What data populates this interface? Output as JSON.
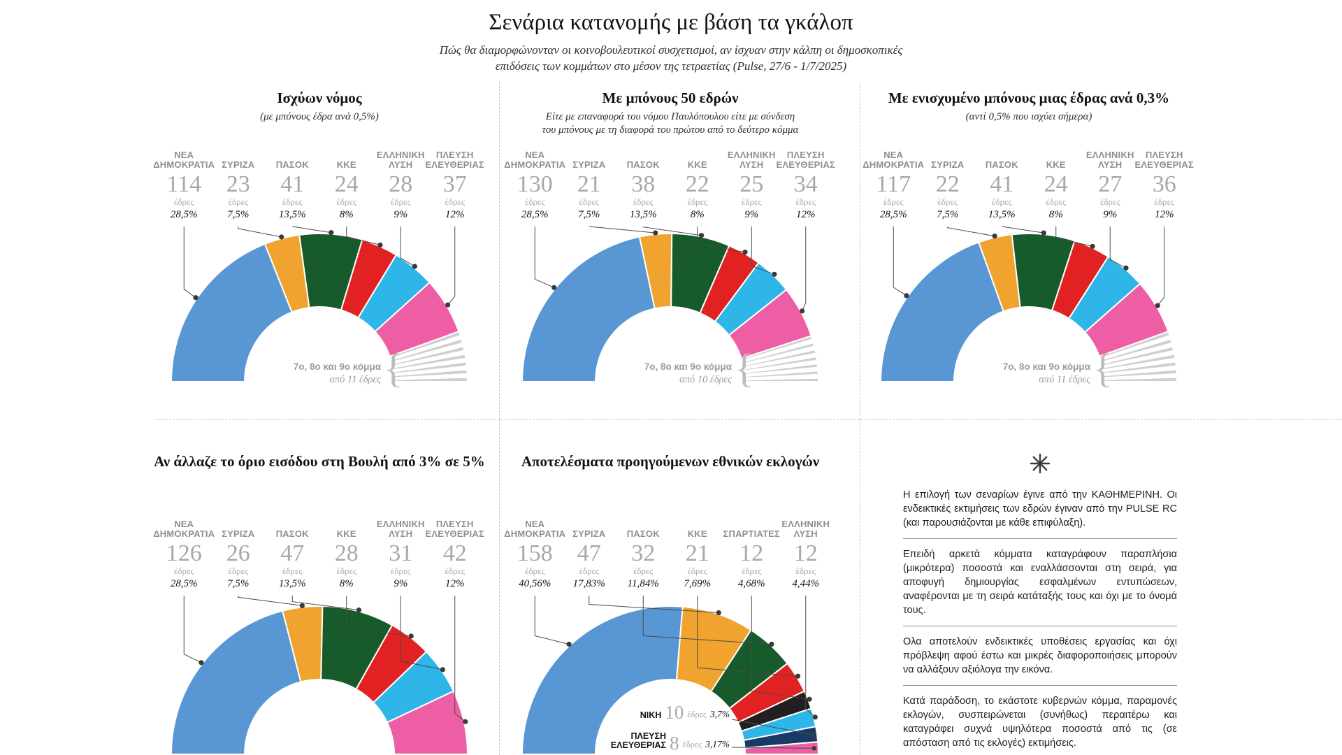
{
  "page": {
    "title": "Σενάρια κατανομής με βάση τα γκάλοπ",
    "subtitle_lines": [
      "Πώς θα διαμορφώνονταν οι κοινοβουλευτικοί συσχετισμοί, αν ίσχυαν στην κάλπη οι δημοσκοπικές",
      "επιδόσεις των κομμάτων στο μέσον της τετραετίας (Pulse, 27/6 - 1/7/2025)"
    ]
  },
  "labels": {
    "seats_word": "έδρες"
  },
  "colors": {
    "nea_dimokratia": "#5897d3",
    "syriza": "#f0a32f",
    "pasok": "#175a2c",
    "kke": "#e22222",
    "elliniki_lysi": "#2eb6e8",
    "plefsi_eleftherias": "#ee5ea4",
    "spartiates": "#231f20",
    "niki": "#173a66",
    "others_gray": "#cfcfcf"
  },
  "chart_data": [
    {
      "type": "semicircle-donut",
      "title": "Ισχύων νόμος",
      "subtitle_lines": [
        "(με μπόνους έδρα ανά 0,5%)"
      ],
      "total_seats": 300,
      "parties": [
        {
          "name_lines": [
            "ΝΕΑ",
            "ΔΗΜΟΚΡΑΤΙΑ"
          ],
          "seats": 114,
          "pct": "28,5%",
          "color": "#5897d3",
          "label": "top"
        },
        {
          "name_lines": [
            "ΣΥΡΙΖΑ"
          ],
          "seats": 23,
          "pct": "7,5%",
          "color": "#f0a32f",
          "label": "top"
        },
        {
          "name_lines": [
            "ΠΑΣΟΚ"
          ],
          "seats": 41,
          "pct": "13,5%",
          "color": "#175a2c",
          "label": "top"
        },
        {
          "name_lines": [
            "ΚΚΕ"
          ],
          "seats": 24,
          "pct": "8%",
          "color": "#e22222",
          "label": "top"
        },
        {
          "name_lines": [
            "ΕΛΛΗΝΙΚΗ",
            "ΛΥΣΗ"
          ],
          "seats": 28,
          "pct": "9%",
          "color": "#2eb6e8",
          "label": "top"
        },
        {
          "name_lines": [
            "ΠΛΕΥΣΗ",
            "ΕΛΕΥΘΕΡΙΑΣ"
          ],
          "seats": 37,
          "pct": "12%",
          "color": "#ee5ea4",
          "label": "top"
        }
      ],
      "others": {
        "seats": 33,
        "note_lines": [
          "7ο, 8ο και 9ο κόμμα",
          "από 11 έδρες"
        ]
      }
    },
    {
      "type": "semicircle-donut",
      "title": "Με μπόνους 50 εδρών",
      "subtitle_lines": [
        "Είτε με επαναφορά του νόμου Παυλόπουλου είτε με σύνδεση",
        "του μπόνους με τη διαφορά του πρώτου από το δεύτερο κόμμα"
      ],
      "total_seats": 300,
      "parties": [
        {
          "name_lines": [
            "ΝΕΑ",
            "ΔΗΜΟΚΡΑΤΙΑ"
          ],
          "seats": 130,
          "pct": "28,5%",
          "color": "#5897d3",
          "label": "top"
        },
        {
          "name_lines": [
            "ΣΥΡΙΖΑ"
          ],
          "seats": 21,
          "pct": "7,5%",
          "color": "#f0a32f",
          "label": "top"
        },
        {
          "name_lines": [
            "ΠΑΣΟΚ"
          ],
          "seats": 38,
          "pct": "13,5%",
          "color": "#175a2c",
          "label": "top"
        },
        {
          "name_lines": [
            "ΚΚΕ"
          ],
          "seats": 22,
          "pct": "8%",
          "color": "#e22222",
          "label": "top"
        },
        {
          "name_lines": [
            "ΕΛΛΗΝΙΚΗ",
            "ΛΥΣΗ"
          ],
          "seats": 25,
          "pct": "9%",
          "color": "#2eb6e8",
          "label": "top"
        },
        {
          "name_lines": [
            "ΠΛΕΥΣΗ",
            "ΕΛΕΥΘΕΡΙΑΣ"
          ],
          "seats": 34,
          "pct": "12%",
          "color": "#ee5ea4",
          "label": "top"
        }
      ],
      "others": {
        "seats": 30,
        "note_lines": [
          "7ο, 8ο και 9ο κόμμα",
          "από 10 έδρες"
        ]
      }
    },
    {
      "type": "semicircle-donut",
      "title": "Με ενισχυμένο μπόνους μιας έδρας ανά 0,3%",
      "subtitle_lines": [
        "(αντί 0,5% που ισχύει σήμερα)"
      ],
      "total_seats": 300,
      "parties": [
        {
          "name_lines": [
            "ΝΕΑ",
            "ΔΗΜΟΚΡΑΤΙΑ"
          ],
          "seats": 117,
          "pct": "28,5%",
          "color": "#5897d3",
          "label": "top"
        },
        {
          "name_lines": [
            "ΣΥΡΙΖΑ"
          ],
          "seats": 22,
          "pct": "7,5%",
          "color": "#f0a32f",
          "label": "top"
        },
        {
          "name_lines": [
            "ΠΑΣΟΚ"
          ],
          "seats": 41,
          "pct": "13,5%",
          "color": "#175a2c",
          "label": "top"
        },
        {
          "name_lines": [
            "ΚΚΕ"
          ],
          "seats": 24,
          "pct": "8%",
          "color": "#e22222",
          "label": "top"
        },
        {
          "name_lines": [
            "ΕΛΛΗΝΙΚΗ",
            "ΛΥΣΗ"
          ],
          "seats": 27,
          "pct": "9%",
          "color": "#2eb6e8",
          "label": "top"
        },
        {
          "name_lines": [
            "ΠΛΕΥΣΗ",
            "ΕΛΕΥΘΕΡΙΑΣ"
          ],
          "seats": 36,
          "pct": "12%",
          "color": "#ee5ea4",
          "label": "top"
        }
      ],
      "others": {
        "seats": 33,
        "note_lines": [
          "7ο, 8ο και 9ο κόμμα",
          "από 11 έδρες"
        ]
      }
    },
    {
      "type": "semicircle-donut",
      "title": "Αν άλλαζε το όριο εισόδου στη Βουλή από 3% σε 5%",
      "subtitle_lines": [],
      "total_seats": 300,
      "parties": [
        {
          "name_lines": [
            "ΝΕΑ",
            "ΔΗΜΟΚΡΑΤΙΑ"
          ],
          "seats": 126,
          "pct": "28,5%",
          "color": "#5897d3",
          "label": "top"
        },
        {
          "name_lines": [
            "ΣΥΡΙΖΑ"
          ],
          "seats": 26,
          "pct": "7,5%",
          "color": "#f0a32f",
          "label": "top"
        },
        {
          "name_lines": [
            "ΠΑΣΟΚ"
          ],
          "seats": 47,
          "pct": "13,5%",
          "color": "#175a2c",
          "label": "top"
        },
        {
          "name_lines": [
            "ΚΚΕ"
          ],
          "seats": 28,
          "pct": "8%",
          "color": "#e22222",
          "label": "top"
        },
        {
          "name_lines": [
            "ΕΛΛΗΝΙΚΗ",
            "ΛΥΣΗ"
          ],
          "seats": 31,
          "pct": "9%",
          "color": "#2eb6e8",
          "label": "top"
        },
        {
          "name_lines": [
            "ΠΛΕΥΣΗ",
            "ΕΛΕΥΘΕΡΙΑΣ"
          ],
          "seats": 42,
          "pct": "12%",
          "color": "#ee5ea4",
          "label": "top"
        }
      ],
      "others": null
    },
    {
      "type": "semicircle-donut",
      "title": "Αποτελέσματα προηγούμενων εθνικών εκλογών",
      "subtitle_lines": [],
      "total_seats": 300,
      "parties": [
        {
          "name_lines": [
            "ΝΕΑ",
            "ΔΗΜΟΚΡΑΤΙΑ"
          ],
          "seats": 158,
          "pct": "40,56%",
          "color": "#5897d3",
          "label": "top"
        },
        {
          "name_lines": [
            "ΣΥΡΙΖΑ"
          ],
          "seats": 47,
          "pct": "17,83%",
          "color": "#f0a32f",
          "label": "top"
        },
        {
          "name_lines": [
            "ΠΑΣΟΚ"
          ],
          "seats": 32,
          "pct": "11,84%",
          "color": "#175a2c",
          "label": "top"
        },
        {
          "name_lines": [
            "ΚΚΕ"
          ],
          "seats": 21,
          "pct": "7,69%",
          "color": "#e22222",
          "label": "top"
        },
        {
          "name_lines": [
            "ΣΠΑΡΤΙΑΤΕΣ"
          ],
          "seats": 12,
          "pct": "4,68%",
          "color": "#231f20",
          "label": "top"
        },
        {
          "name_lines": [
            "ΕΛΛΗΝΙΚΗ",
            "ΛΥΣΗ"
          ],
          "seats": 12,
          "pct": "4,44%",
          "color": "#2eb6e8",
          "label": "top"
        },
        {
          "name_lines": [
            "ΝΙΚΗ"
          ],
          "seats": 10,
          "pct": "3,7%",
          "color": "#173a66",
          "label": "inner"
        },
        {
          "name_lines": [
            "ΠΛΕΥΣΗ",
            "ΕΛΕΥΘΕΡΙΑΣ"
          ],
          "seats": 8,
          "pct": "3,17%",
          "color": "#ee5ea4",
          "label": "inner"
        }
      ],
      "others": null
    }
  ],
  "footnote": {
    "paragraphs": [
      "Η επιλογή των σεναρίων έγινε από την ΚΑΘΗΜΕΡΙΝΗ. Οι ενδεικτικές εκτιμήσεις των εδρών έγιναν από την PULSE RC (και παρουσιάζονται με κάθε επιφύλαξη).",
      "Επειδή αρκετά κόμματα καταγράφουν παραπλήσια (μικρότερα) ποσοστά και εναλλάσσονται στη σειρά, για αποφυγή δημιουργίας εσφαλμένων εντυπώσεων, αναφέρονται με τη σειρά κατάταξής τους και όχι με το όνομά τους.",
      "Ολα αποτελούν ενδεικτικές υποθέσεις εργασίας και όχι πρόβλεψη αφού έστω και μικρές διαφοροποιήσεις μπορούν να αλλάξουν αξιόλογα την εικόνα.",
      "Κατά παράδοση, το εκάστοτε κυβερνών κόμμα, παραμονές εκλογών, συσπειρώνεται (συνήθως) περαιτέρω και καταγράφει συχνά υψηλότερα ποσοστά από τις (σε απόσταση από τις εκλογές) εκτιμήσεις."
    ]
  }
}
